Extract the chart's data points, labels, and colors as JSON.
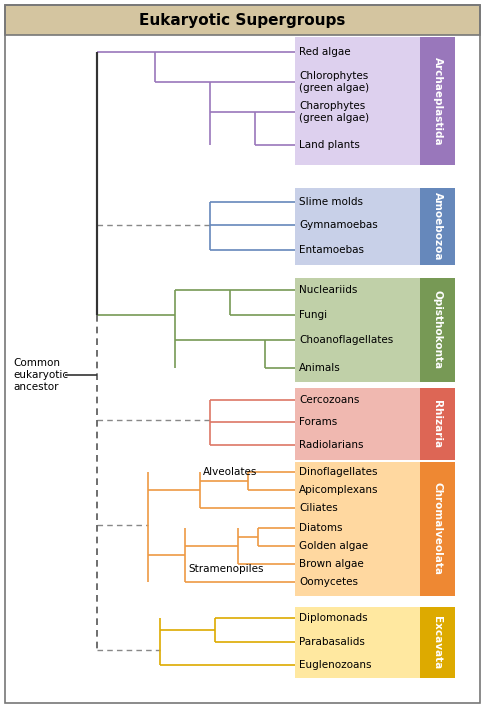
{
  "title": "Eukaryotic Supergroups",
  "title_bg": "#d4c5a0",
  "bg_color": "#ffffff",
  "border_color": "#777777",
  "ancestor_label": "Common\neukaryotic\nancestor",
  "groups": [
    {
      "name": "Archaeplastida",
      "bg_color": "#ddd0ee",
      "tab_color": "#9977bb",
      "line_color": "#9977bb",
      "members": [
        "Red algae",
        "Chlorophytes\n(green algae)",
        "Charophytes\n(green algae)",
        "Land plants"
      ]
    },
    {
      "name": "Amoebozoa",
      "bg_color": "#c8d0e8",
      "tab_color": "#6688bb",
      "line_color": "#6688bb",
      "members": [
        "Slime molds",
        "Gymnamoebas",
        "Entamoebas"
      ]
    },
    {
      "name": "Opisthokonta",
      "bg_color": "#c0d0a8",
      "tab_color": "#779955",
      "line_color": "#779955",
      "members": [
        "Nucleariids",
        "Fungi",
        "Choanoflagellates",
        "Animals"
      ]
    },
    {
      "name": "Rhizaria",
      "bg_color": "#f0b8b0",
      "tab_color": "#dd6655",
      "line_color": "#dd7766",
      "members": [
        "Cercozoans",
        "Forams",
        "Radiolarians"
      ]
    },
    {
      "name": "Chromalveolata",
      "bg_color": "#ffd8a0",
      "tab_color": "#ee8833",
      "line_color": "#ee9944",
      "members": [
        "Dinoflagellates",
        "Apicomplexans",
        "Ciliates",
        "Diatoms",
        "Golden algae",
        "Brown algae",
        "Oomycetes"
      ]
    },
    {
      "name": "Excavata",
      "bg_color": "#ffe8a0",
      "tab_color": "#ddaa00",
      "line_color": "#ddaa00",
      "members": [
        "Diplomonads",
        "Parabasalids",
        "Euglenozoans"
      ]
    }
  ]
}
